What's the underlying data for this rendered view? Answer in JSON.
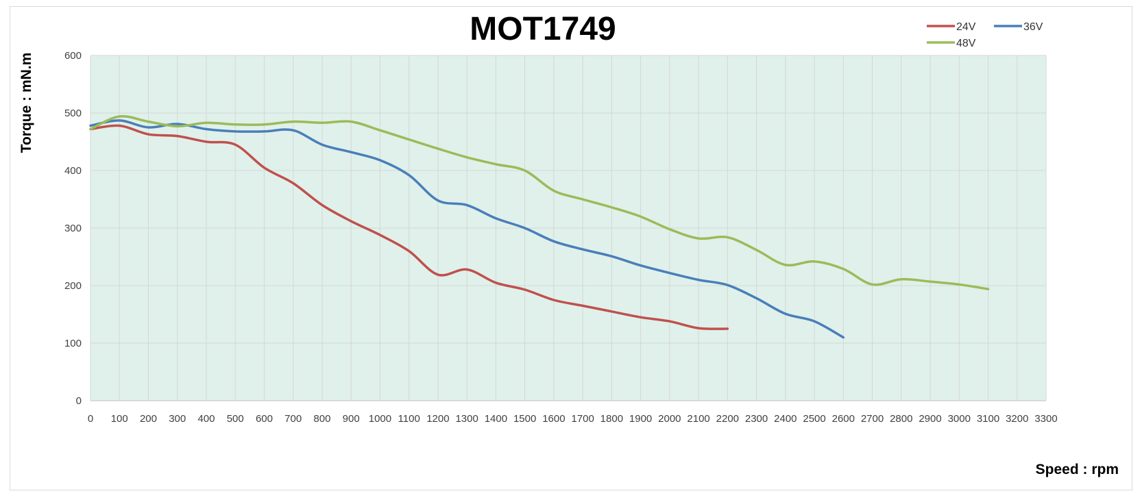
{
  "chart_data": {
    "type": "line",
    "title": "MOT1749",
    "xlabel": "Speed : rpm",
    "ylabel": "Torque : mN.m",
    "xlim": [
      0,
      3300
    ],
    "ylim": [
      0,
      600
    ],
    "x_ticks": [
      "0",
      "100",
      "200",
      "300",
      "400",
      "500",
      "600",
      "700",
      "800",
      "900",
      "1000",
      "1100",
      "1200",
      "1300",
      "1400",
      "1500",
      "1600",
      "1700",
      "1800",
      "1900",
      "2000",
      "2100",
      "2200",
      "2300",
      "2400",
      "2500",
      "2600",
      "2700",
      "2800",
      "2900",
      "3000",
      "3100",
      "3200",
      "3300"
    ],
    "y_ticks": [
      "0",
      "100",
      "200",
      "300",
      "400",
      "500",
      "600"
    ],
    "grid": true,
    "legend_position": "top-right",
    "plot_background": "#dff1ea",
    "series": [
      {
        "name": "24V",
        "color": "#c0504d",
        "x": [
          0,
          100,
          200,
          300,
          400,
          500,
          600,
          700,
          800,
          900,
          1000,
          1100,
          1200,
          1300,
          1400,
          1500,
          1600,
          1700,
          1800,
          1900,
          2000,
          2100,
          2200
        ],
        "y": [
          472,
          478,
          463,
          460,
          450,
          445,
          405,
          378,
          340,
          312,
          288,
          260,
          219,
          228,
          205,
          193,
          175,
          165,
          155,
          145,
          138,
          126,
          125
        ]
      },
      {
        "name": "36V",
        "color": "#4a7ebb",
        "x": [
          0,
          100,
          200,
          300,
          400,
          500,
          600,
          700,
          800,
          900,
          1000,
          1100,
          1200,
          1300,
          1400,
          1500,
          1600,
          1700,
          1800,
          1900,
          2000,
          2100,
          2200,
          2300,
          2400,
          2500,
          2600
        ],
        "y": [
          478,
          487,
          475,
          481,
          472,
          468,
          468,
          470,
          445,
          432,
          418,
          392,
          348,
          340,
          317,
          300,
          277,
          263,
          251,
          235,
          222,
          210,
          201,
          178,
          151,
          138,
          110
        ]
      },
      {
        "name": "48V",
        "color": "#9bbb59",
        "x": [
          0,
          100,
          200,
          300,
          400,
          500,
          600,
          700,
          800,
          900,
          1000,
          1100,
          1200,
          1300,
          1400,
          1500,
          1600,
          1700,
          1800,
          1900,
          2000,
          2100,
          2200,
          2300,
          2400,
          2500,
          2600,
          2700,
          2800,
          2900,
          3000,
          3100
        ],
        "y": [
          472,
          494,
          485,
          477,
          483,
          480,
          480,
          485,
          483,
          485,
          470,
          454,
          438,
          423,
          411,
          400,
          365,
          350,
          336,
          320,
          298,
          282,
          284,
          262,
          236,
          242,
          229,
          202,
          211,
          207,
          202,
          194
        ]
      }
    ]
  }
}
